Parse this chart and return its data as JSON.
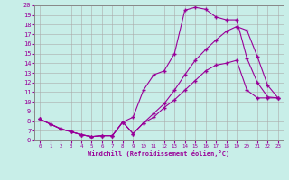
{
  "xlabel": "Windchill (Refroidissement éolien,°C)",
  "bg_color": "#c8eee8",
  "line_color": "#990099",
  "grid_color": "#aaaaaa",
  "xlim": [
    -0.5,
    23.5
  ],
  "ylim": [
    6,
    20
  ],
  "xticks": [
    0,
    1,
    2,
    3,
    4,
    5,
    6,
    7,
    8,
    9,
    10,
    11,
    12,
    13,
    14,
    15,
    16,
    17,
    18,
    19,
    20,
    21,
    22,
    23
  ],
  "yticks": [
    6,
    7,
    8,
    9,
    10,
    11,
    12,
    13,
    14,
    15,
    16,
    17,
    18,
    19,
    20
  ],
  "line1_x": [
    0,
    1,
    2,
    3,
    4,
    5,
    6,
    7,
    8,
    9,
    10,
    11,
    12,
    13,
    14,
    15,
    16,
    17,
    18,
    19,
    20,
    21,
    22,
    23
  ],
  "line1_y": [
    8.2,
    7.7,
    7.2,
    6.9,
    6.6,
    6.4,
    6.5,
    6.5,
    7.9,
    6.7,
    7.8,
    8.4,
    9.4,
    10.2,
    11.2,
    12.2,
    13.2,
    13.8,
    14.0,
    14.3,
    11.2,
    10.4,
    10.4,
    10.4
  ],
  "line2_x": [
    0,
    1,
    2,
    3,
    4,
    5,
    6,
    7,
    8,
    9,
    10,
    11,
    12,
    13,
    14,
    15,
    16,
    17,
    18,
    19,
    20,
    21,
    22,
    23
  ],
  "line2_y": [
    8.2,
    7.7,
    7.2,
    6.9,
    6.6,
    6.4,
    6.5,
    6.5,
    7.9,
    8.4,
    11.2,
    12.8,
    13.2,
    15.0,
    19.5,
    19.8,
    19.6,
    18.8,
    18.5,
    18.5,
    14.5,
    12.0,
    10.5,
    10.4
  ],
  "line3_x": [
    0,
    1,
    2,
    3,
    4,
    5,
    6,
    7,
    8,
    9,
    10,
    11,
    12,
    13,
    14,
    15,
    16,
    17,
    18,
    19,
    20,
    21,
    22,
    23
  ],
  "line3_y": [
    8.2,
    7.7,
    7.2,
    6.9,
    6.6,
    6.4,
    6.5,
    6.5,
    7.9,
    6.7,
    7.8,
    8.8,
    9.8,
    11.2,
    12.8,
    14.3,
    15.4,
    16.4,
    17.3,
    17.8,
    17.4,
    14.7,
    11.7,
    10.4
  ]
}
